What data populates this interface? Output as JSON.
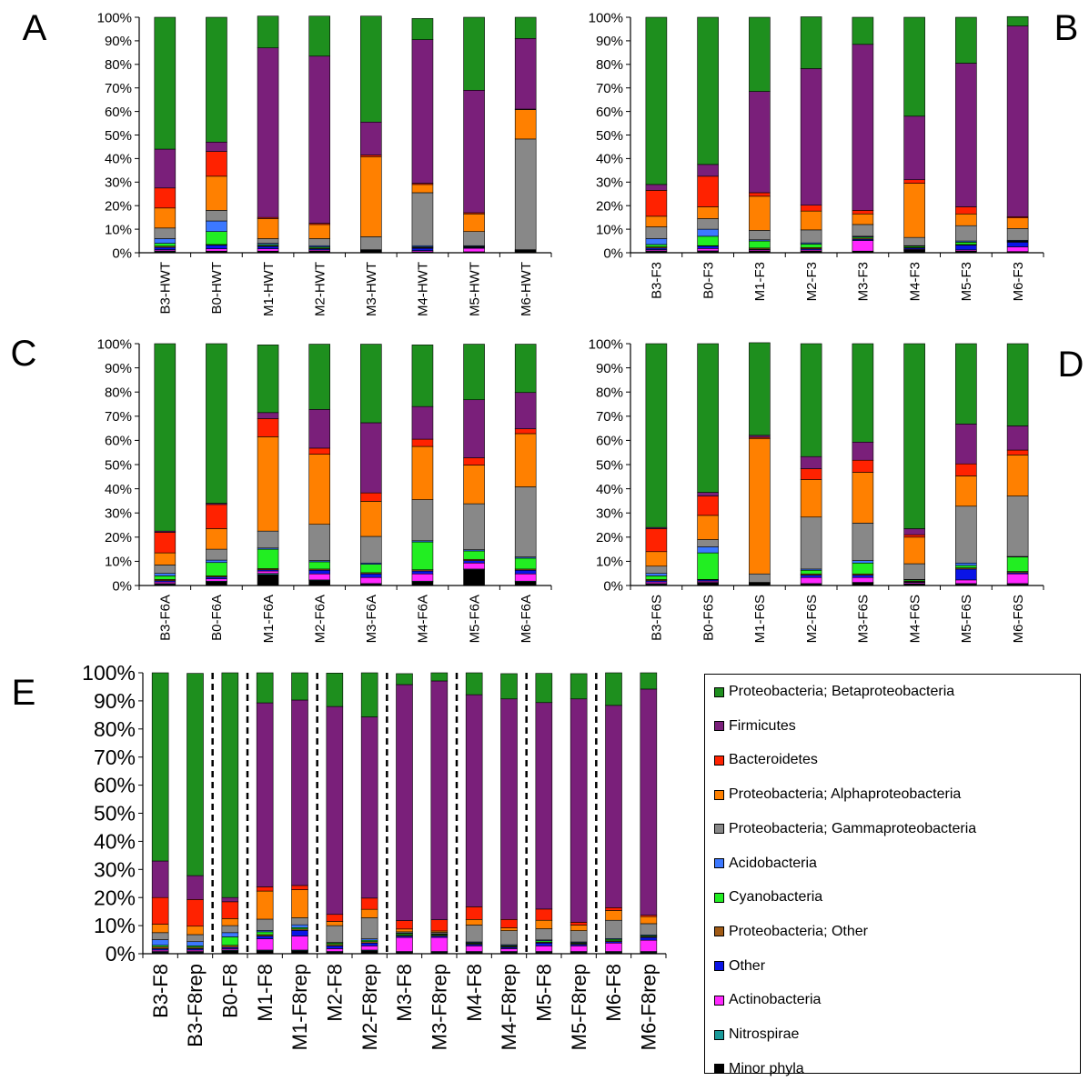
{
  "legend": {
    "entries": [
      {
        "label": "Proteobacteria; Betaproteobacteria",
        "color": "#1e8f1e"
      },
      {
        "label": "Firmicutes",
        "color": "#7a1f7a"
      },
      {
        "label": "Bacteroidetes",
        "color": "#ff2200"
      },
      {
        "label": "Proteobacteria; Alphaproteobacteria",
        "color": "#ff8000"
      },
      {
        "label": "Proteobacteria; Gammaproteobacteria",
        "color": "#888888"
      },
      {
        "label": "Acidobacteria",
        "color": "#3c78ff"
      },
      {
        "label": "Cyanobacteria",
        "color": "#22ee22"
      },
      {
        "label": "Proteobacteria; Other",
        "color": "#a05a14"
      },
      {
        "label": "Other",
        "color": "#0a14e6"
      },
      {
        "label": "Actinobacteria",
        "color": "#ff28ff"
      },
      {
        "label": "Nitrospirae",
        "color": "#1a9a9a"
      },
      {
        "label": "Minor phyla",
        "color": "#000000"
      }
    ]
  },
  "chart_data": [
    {
      "type": "bar",
      "stacked": true,
      "panel_label": "A",
      "y_ticks": [
        "0%",
        "10%",
        "20%",
        "30%",
        "40%",
        "50%",
        "60%",
        "70%",
        "80%",
        "90%",
        "100%"
      ],
      "ylim": [
        0,
        100
      ],
      "categories": [
        "B3-HWT",
        "B0-HWT",
        "M1-HWT",
        "M2-HWT",
        "M3-HWT",
        "M4-HWT",
        "M5-HWT",
        "M6-HWT"
      ],
      "series": [
        {
          "name": "Minor phyla",
          "values": [
            0.5,
            0.5,
            0.5,
            0.5,
            0.3,
            0.3,
            0.3,
            0.3
          ]
        },
        {
          "name": "Nitrospirae",
          "values": [
            0.3,
            0.2,
            0.2,
            0.2,
            0.1,
            0.1,
            0.1,
            0.1
          ]
        },
        {
          "name": "Actinobacteria",
          "values": [
            0.5,
            1,
            1,
            0.5,
            0.2,
            0.5,
            1.5,
            0.2
          ]
        },
        {
          "name": "Other",
          "values": [
            1,
            1.5,
            1,
            0.5,
            0.2,
            1,
            0.3,
            0.2
          ]
        },
        {
          "name": "Proteobacteria; Other",
          "values": [
            0.5,
            0.3,
            0.3,
            0.3,
            0.2,
            0.3,
            0.2,
            0.2
          ]
        },
        {
          "name": "Cyanobacteria",
          "values": [
            1.2,
            5.5,
            0.5,
            0.5,
            0.1,
            0.3,
            0.3,
            0.1
          ]
        },
        {
          "name": "Acidobacteria",
          "values": [
            2,
            4.5,
            0.5,
            0.5,
            0.2,
            0.5,
            0.3,
            0.2
          ]
        },
        {
          "name": "Proteobacteria; Gammaproteobacteria",
          "values": [
            4.5,
            4.5,
            2,
            3,
            5.5,
            22.5,
            6,
            47
          ]
        },
        {
          "name": "Proteobacteria; Alphaproteobacteria",
          "values": [
            8.5,
            14.5,
            8.5,
            6,
            34,
            3.5,
            7.5,
            12.5
          ]
        },
        {
          "name": "Bacteroidetes",
          "values": [
            8.5,
            10.5,
            0.5,
            0.5,
            0.7,
            0.5,
            0.5,
            0.2
          ]
        },
        {
          "name": "Firmicutes",
          "values": [
            16.5,
            4,
            72,
            71,
            14,
            61,
            52,
            30
          ]
        },
        {
          "name": "Proteobacteria; Betaproteobacteria",
          "values": [
            56,
            53,
            13.5,
            17,
            45,
            9,
            31,
            9
          ]
        }
      ]
    },
    {
      "type": "bar",
      "stacked": true,
      "panel_label": "B",
      "y_ticks": [
        "0%",
        "10%",
        "20%",
        "30%",
        "40%",
        "50%",
        "60%",
        "70%",
        "80%",
        "90%",
        "100%"
      ],
      "ylim": [
        0,
        100
      ],
      "categories": [
        "B3-F3",
        "B0-F3",
        "M1-F3",
        "M2-F3",
        "M3-F3",
        "M4-F3",
        "M5-F3",
        "M6-F3"
      ],
      "series": [
        {
          "name": "Minor phyla",
          "values": [
            0.5,
            0.5,
            0.5,
            0.5,
            0.5,
            1,
            0.5,
            0.3
          ]
        },
        {
          "name": "Nitrospirae",
          "values": [
            0.3,
            0.3,
            0.2,
            0.2,
            0.2,
            0.2,
            0.2,
            0.2
          ]
        },
        {
          "name": "Actinobacteria",
          "values": [
            0.5,
            1,
            0.5,
            0.5,
            4.5,
            0.3,
            0.5,
            2
          ]
        },
        {
          "name": "Other",
          "values": [
            0.7,
            1,
            0.3,
            0.5,
            0.5,
            0.5,
            2,
            2
          ]
        },
        {
          "name": "Proteobacteria; Other",
          "values": [
            0.5,
            0.2,
            0.5,
            0.5,
            0.5,
            0.3,
            0.3,
            0.3
          ]
        },
        {
          "name": "Cyanobacteria",
          "values": [
            1,
            4,
            3,
            1.5,
            0.5,
            0.5,
            1,
            0.2
          ]
        },
        {
          "name": "Acidobacteria",
          "values": [
            2.5,
            3,
            0.5,
            0.5,
            0.3,
            0.2,
            0.5,
            0.3
          ]
        },
        {
          "name": "Proteobacteria; Gammaproteobacteria",
          "values": [
            5,
            4.5,
            4,
            5.5,
            5,
            3.5,
            6.5,
            5
          ]
        },
        {
          "name": "Proteobacteria; Alphaproteobacteria",
          "values": [
            4.5,
            5,
            14.5,
            8,
            4.5,
            23,
            5,
            4.5
          ]
        },
        {
          "name": "Bacteroidetes",
          "values": [
            11,
            13,
            1.5,
            2.5,
            1.5,
            1.5,
            3,
            0.5
          ]
        },
        {
          "name": "Firmicutes",
          "values": [
            2.5,
            5,
            43,
            58,
            70.5,
            27,
            61,
            81
          ]
        },
        {
          "name": "Proteobacteria; Betaproteobacteria",
          "values": [
            71,
            62.5,
            31.5,
            22,
            11.5,
            42,
            19.5,
            4
          ]
        }
      ]
    },
    {
      "type": "bar",
      "stacked": true,
      "panel_label": "C",
      "y_ticks": [
        "0%",
        "10%",
        "20%",
        "30%",
        "40%",
        "50%",
        "60%",
        "70%",
        "80%",
        "90%",
        "100%"
      ],
      "ylim": [
        0,
        100
      ],
      "categories": [
        "B3-F6A",
        "B0-F6A",
        "M1-F6A",
        "M2-F6A",
        "M3-F6A",
        "M4-F6A",
        "M5-F6A",
        "M6-F6A"
      ],
      "series": [
        {
          "name": "Minor phyla",
          "values": [
            0.5,
            1.5,
            4.5,
            2,
            0.5,
            1.5,
            6.5,
            1.5
          ]
        },
        {
          "name": "Nitrospirae",
          "values": [
            0.3,
            0.3,
            0.5,
            0.3,
            0.3,
            0.3,
            0.3,
            0.3
          ]
        },
        {
          "name": "Actinobacteria",
          "values": [
            0.7,
            1,
            1,
            2.5,
            2.5,
            3,
            2.5,
            3
          ]
        },
        {
          "name": "Other",
          "values": [
            0.5,
            0.7,
            0.5,
            1.5,
            1.5,
            1.2,
            1,
            1.5
          ]
        },
        {
          "name": "Proteobacteria; Other",
          "values": [
            0.5,
            0.5,
            0.5,
            0.5,
            0.5,
            0.5,
            0.5,
            0.5
          ]
        },
        {
          "name": "Cyanobacteria",
          "values": [
            1.5,
            5.5,
            8,
            3,
            3.5,
            11.5,
            3.5,
            4.5
          ]
        },
        {
          "name": "Acidobacteria",
          "values": [
            1,
            1,
            0.5,
            0.5,
            0.5,
            0.5,
            0.5,
            0.5
          ]
        },
        {
          "name": "Proteobacteria; Gammaproteobacteria",
          "values": [
            3.5,
            4.5,
            7,
            15,
            11,
            17,
            19,
            29
          ]
        },
        {
          "name": "Proteobacteria; Alphaproteobacteria",
          "values": [
            5,
            8.5,
            39,
            29,
            14.5,
            22,
            16,
            22
          ]
        },
        {
          "name": "Bacteroidetes",
          "values": [
            8.5,
            10,
            7.5,
            2.5,
            3.5,
            3,
            3,
            2
          ]
        },
        {
          "name": "Firmicutes",
          "values": [
            0.5,
            0.5,
            2.5,
            16,
            29,
            13.5,
            24,
            15
          ]
        },
        {
          "name": "Proteobacteria; Betaproteobacteria",
          "values": [
            77.5,
            66,
            28,
            27,
            32.5,
            25.5,
            23,
            20
          ]
        }
      ]
    },
    {
      "type": "bar",
      "stacked": true,
      "panel_label": "D",
      "y_ticks": [
        "0%",
        "10%",
        "20%",
        "30%",
        "40%",
        "50%",
        "60%",
        "70%",
        "80%",
        "90%",
        "100%"
      ],
      "ylim": [
        0,
        100
      ],
      "categories": [
        "B3-F6S",
        "B0-F6S",
        "M1-F6S",
        "M2-F6S",
        "M3-F6S",
        "M4-F6S",
        "M5-F6S",
        "M6-F6S"
      ],
      "series": [
        {
          "name": "Minor phyla",
          "values": [
            0.5,
            1,
            0.5,
            0.5,
            1,
            0.5,
            0.5,
            0.5
          ]
        },
        {
          "name": "Nitrospirae",
          "values": [
            0.3,
            0.3,
            0.1,
            0.3,
            0.3,
            0.2,
            0.3,
            0.3
          ]
        },
        {
          "name": "Actinobacteria",
          "values": [
            0.7,
            0.5,
            0.2,
            2.5,
            2,
            0.5,
            1.5,
            4
          ]
        },
        {
          "name": "Other",
          "values": [
            0.5,
            0.5,
            0.1,
            1,
            1,
            0.3,
            4.5,
            0.5
          ]
        },
        {
          "name": "Proteobacteria; Other",
          "values": [
            0.5,
            0.2,
            0.1,
            0.5,
            0.5,
            0.3,
            0.5,
            0.5
          ]
        },
        {
          "name": "Cyanobacteria",
          "values": [
            1.5,
            11,
            0.2,
            1.5,
            4.5,
            0.5,
            1,
            6
          ]
        },
        {
          "name": "Acidobacteria",
          "values": [
            1,
            2.5,
            0.1,
            0.5,
            1,
            0.2,
            1,
            0.2
          ]
        },
        {
          "name": "Proteobacteria; Gammaproteobacteria",
          "values": [
            3,
            3,
            3.5,
            21.5,
            15.5,
            6.5,
            23.5,
            25
          ]
        },
        {
          "name": "Proteobacteria; Alphaproteobacteria",
          "values": [
            6,
            10,
            56,
            15.5,
            21,
            11,
            12.5,
            17
          ]
        },
        {
          "name": "Bacteroidetes",
          "values": [
            9.5,
            8,
            0.5,
            4.5,
            5,
            1,
            5,
            2
          ]
        },
        {
          "name": "Firmicutes",
          "values": [
            0.5,
            1.5,
            0.8,
            5,
            7.5,
            2.5,
            16.5,
            10
          ]
        },
        {
          "name": "Proteobacteria; Betaproteobacteria",
          "values": [
            76,
            61.5,
            38.3,
            46.7,
            40.7,
            76.5,
            33.2,
            34
          ]
        }
      ]
    },
    {
      "type": "bar",
      "stacked": true,
      "panel_label": "E",
      "y_ticks": [
        "0%",
        "10%",
        "20%",
        "30%",
        "40%",
        "50%",
        "60%",
        "70%",
        "80%",
        "90%",
        "100%"
      ],
      "ylim": [
        0,
        100
      ],
      "categories": [
        "B3-F8",
        "B3-F8rep",
        "B0-F8",
        "M1-F8",
        "M1-F8rep",
        "M2-F8",
        "M2-F8rep",
        "M3-F8",
        "M3-F8rep",
        "M4-F8",
        "M4-F8rep",
        "M5-F8",
        "M5-F8rep",
        "M6-F8",
        "M6-F8rep"
      ],
      "series": [
        {
          "name": "Minor phyla",
          "values": [
            0.5,
            0.5,
            1,
            1,
            1,
            0.5,
            1,
            0.5,
            0.5,
            0.5,
            0.5,
            0.5,
            0.5,
            0.5,
            0.5
          ]
        },
        {
          "name": "Nitrospirae",
          "values": [
            0.3,
            0.3,
            0.3,
            0.3,
            0.3,
            0.3,
            0.3,
            0.3,
            0.3,
            0.3,
            0.3,
            0.3,
            0.3,
            0.3,
            0.3
          ]
        },
        {
          "name": "Actinobacteria",
          "values": [
            0.5,
            0.5,
            0.5,
            4,
            5,
            1,
            1.5,
            5,
            5,
            2,
            1,
            2,
            2,
            3,
            4
          ]
        },
        {
          "name": "Other",
          "values": [
            0.5,
            0.5,
            0.5,
            1,
            2,
            1,
            1,
            0.5,
            0.5,
            0.5,
            0.5,
            1,
            0.5,
            0.5,
            1
          ]
        },
        {
          "name": "Proteobacteria; Other",
          "values": [
            0.7,
            0.5,
            0.7,
            0.5,
            0.5,
            0.5,
            0.5,
            0.3,
            0.3,
            0.3,
            0.3,
            0.3,
            0.3,
            0.3,
            0.3
          ]
        },
        {
          "name": "Cyanobacteria",
          "values": [
            0.5,
            0.5,
            3,
            1,
            0.5,
            0.5,
            0.5,
            0.5,
            0.3,
            0.3,
            0.3,
            0.5,
            0.3,
            0.5,
            0.3
          ]
        },
        {
          "name": "Acidobacteria",
          "values": [
            2,
            1.5,
            1.5,
            0.5,
            1,
            0.2,
            0.5,
            0.2,
            0.2,
            0.3,
            0.3,
            0.3,
            0.3,
            0.3,
            0.3
          ]
        },
        {
          "name": "Proteobacteria; Gammaproteobacteria",
          "values": [
            2.5,
            2.5,
            2.5,
            4,
            2.5,
            6,
            7.5,
            0.5,
            0.5,
            6,
            5,
            4,
            4,
            6.5,
            4
          ]
        },
        {
          "name": "Proteobacteria; Alphaproteobacteria",
          "values": [
            3,
            3,
            2.5,
            10,
            10,
            1.5,
            3,
            1,
            0.5,
            2,
            1,
            3,
            2,
            3.5,
            2.5
          ]
        },
        {
          "name": "Bacteroidetes",
          "values": [
            9.5,
            9.5,
            6,
            1.5,
            1.5,
            2.5,
            4,
            3,
            4,
            4.5,
            3,
            4,
            1,
            1,
            0.5
          ]
        },
        {
          "name": "Firmicutes",
          "values": [
            13,
            8.5,
            1.5,
            65.5,
            66,
            74,
            64.5,
            84,
            85,
            75.5,
            78.5,
            73.5,
            79.5,
            72,
            80.5
          ]
        },
        {
          "name": "Proteobacteria; Betaproteobacteria",
          "values": [
            67,
            72,
            80,
            10.7,
            9.7,
            11.9,
            15.7,
            3.9,
            2.9,
            7.8,
            9.0,
            10.4,
            9.0,
            11.6,
            5.8
          ]
        }
      ]
    }
  ]
}
